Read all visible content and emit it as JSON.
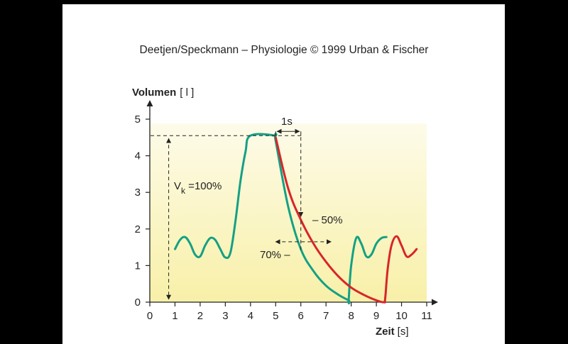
{
  "credit": "Deetjen/Speckmann – Physiologie © 1999 Urban & Fischer",
  "chart_data": {
    "type": "line",
    "ylabel_bold": "Volumen",
    "ylabel_unit": "[ l ]",
    "xlabel_bold": "Zeit",
    "xlabel_unit": "[s]",
    "xlim": [
      0,
      11
    ],
    "ylim": [
      0,
      5
    ],
    "xticks": [
      "0",
      "1",
      "2",
      "3",
      "4",
      "5",
      "6",
      "7",
      "8",
      "9",
      "10",
      "11"
    ],
    "yticks": [
      "0",
      "1",
      "2",
      "3",
      "4",
      "5"
    ],
    "grid": false,
    "background": "light yellow gradient",
    "series": [
      {
        "color": "#14a085",
        "x": [
          1.0,
          1.2,
          1.4,
          1.6,
          1.8,
          2.0,
          2.2,
          2.4,
          2.6,
          2.8,
          3.0,
          3.2,
          3.4,
          3.6,
          3.8,
          4.0,
          4.95,
          5.0,
          5.5,
          6.0,
          6.5,
          7.0,
          7.5,
          7.9,
          7.9,
          8.0,
          8.2,
          8.4,
          8.6,
          8.8,
          9.0,
          9.2,
          9.4
        ],
        "y": [
          1.45,
          1.7,
          1.78,
          1.6,
          1.3,
          1.25,
          1.55,
          1.75,
          1.7,
          1.45,
          1.22,
          1.35,
          2.2,
          3.3,
          4.1,
          4.55,
          4.55,
          4.4,
          2.6,
          1.45,
          0.85,
          0.45,
          0.2,
          0.05,
          0.05,
          1.0,
          1.75,
          1.6,
          1.25,
          1.3,
          1.6,
          1.75,
          1.78
        ]
      },
      {
        "color": "#d8252a",
        "x": [
          5.0,
          5.5,
          6.0,
          6.5,
          7.0,
          7.5,
          8.0,
          8.5,
          9.0,
          9.3,
          9.35,
          9.45,
          9.6,
          9.8,
          10.0,
          10.2,
          10.4,
          10.6
        ],
        "y": [
          4.5,
          3.1,
          2.25,
          1.6,
          1.1,
          0.7,
          0.4,
          0.2,
          0.05,
          0.0,
          0.1,
          0.9,
          1.55,
          1.8,
          1.55,
          1.25,
          1.3,
          1.45
        ]
      }
    ],
    "annotations": {
      "span_label": "1s",
      "vk_main": "V",
      "vk_sub": "k",
      "vk_rest": " =100%",
      "pct50": "– 50%",
      "pct70": "70% –"
    }
  }
}
